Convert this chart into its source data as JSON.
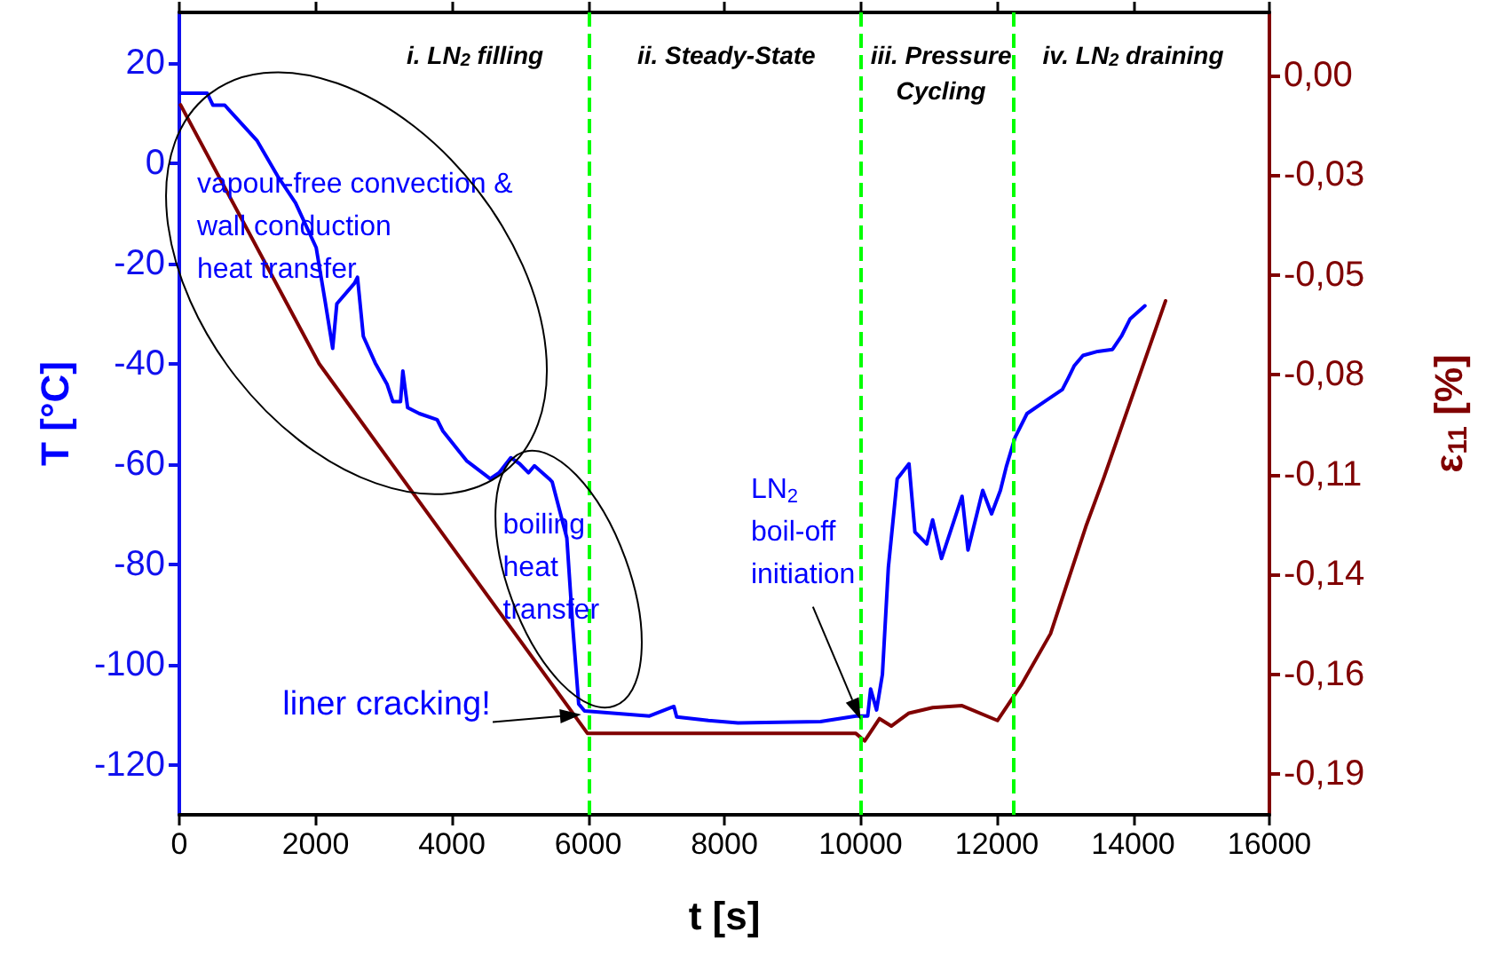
{
  "chart_data": {
    "type": "line",
    "xlabel": "t [s]",
    "ylabel": "T [°C]",
    "y2label": "ε$_{11}$ [%]",
    "xlim": [
      0,
      16000
    ],
    "xticks": [
      0,
      2000,
      4000,
      6000,
      8000,
      10000,
      12000,
      14000,
      16000
    ],
    "ylim": [
      -130,
      30
    ],
    "yticks": [
      -120,
      -100,
      -80,
      -60,
      -40,
      -20,
      0,
      20
    ],
    "y2lim": [
      -0.2,
      0.017
    ],
    "y2ticks": [
      {
        "value": 0,
        "label": "0,00"
      },
      {
        "value": -0.027,
        "label": "-0,03"
      },
      {
        "value": -0.054,
        "label": "-0,05"
      },
      {
        "value": -0.081,
        "label": "-0,08"
      },
      {
        "value": -0.108,
        "label": "-0,11"
      },
      {
        "value": -0.135,
        "label": "-0,14"
      },
      {
        "value": -0.162,
        "label": "-0,16"
      },
      {
        "value": -0.189,
        "label": "-0,19"
      }
    ],
    "series": [
      {
        "color": "#0000ff",
        "x": [
          18,
          408,
          494,
          667,
          1143,
          1446,
          1706,
          2009,
          2139,
          2251,
          2312,
          2571,
          2615,
          2701,
          2875,
          3048,
          3134,
          3247,
          3281,
          3351,
          3524,
          3784,
          3870,
          4216,
          4563,
          4693,
          4865,
          4995,
          5125,
          5212,
          5429,
          5472,
          5688,
          5775,
          5862,
          5948,
          6901,
          7260,
          7300,
          7766,
          8200,
          9411,
          9931,
          10104,
          10147,
          10234,
          10320,
          10407,
          10537,
          10710,
          10797,
          10970,
          11057,
          11187,
          11316,
          11489,
          11576,
          11792,
          11922,
          12052,
          12138,
          12268,
          12442,
          12701,
          12961,
          13048,
          13134,
          13264,
          13481,
          13697,
          13827,
          13957,
          14173
        ],
        "values": [
          13.9,
          13.9,
          11.5,
          11.5,
          4.4,
          -2.7,
          -8,
          -16.9,
          -27.5,
          -37,
          -28.1,
          -24,
          -22.8,
          -34.6,
          -39.9,
          -44.1,
          -47.6,
          -47.6,
          -41.5,
          -48.8,
          -50,
          -51.2,
          -53.5,
          -59.4,
          -63,
          -61.8,
          -58.8,
          -60,
          -61.8,
          -60.4,
          -63,
          -63.6,
          -74.8,
          -92.5,
          -107.9,
          -109.3,
          -110.3,
          -108.4,
          -110.5,
          -111.2,
          -111.7,
          -111.4,
          -110.3,
          -110.3,
          -104.9,
          -109.1,
          -102,
          -80.7,
          -63,
          -60,
          -73.6,
          -76,
          -71.2,
          -78.9,
          -73.6,
          -66.5,
          -77.2,
          -65.3,
          -70,
          -65.3,
          -60.6,
          -54.7,
          -50,
          -47.6,
          -45.2,
          -42.9,
          -40.5,
          -38.4,
          -37.6,
          -37.2,
          -34.6,
          -31.1,
          -28.5
        ]
      },
      {
        "color": "#800000",
        "axis": "y2",
        "x": [
          18,
          2052,
          5992,
          9931,
          10061,
          10277,
          10450,
          10710,
          11057,
          11489,
          12008,
          12355,
          12788,
          13307,
          13567,
          14476
        ],
        "values": [
          -0.008,
          -0.078,
          -0.178,
          -0.178,
          -0.18,
          -0.174,
          -0.176,
          -0.1725,
          -0.171,
          -0.1705,
          -0.1745,
          -0.165,
          -0.151,
          -0.122,
          -0.109,
          -0.061
        ]
      }
    ],
    "ref_lines": [
      {
        "axis": "x",
        "value": 6000,
        "color": "#00ff00",
        "line_style": "dashed"
      },
      {
        "axis": "x",
        "value": 10000,
        "color": "#00ff00",
        "line_style": "dashed"
      },
      {
        "axis": "x",
        "value": 12250,
        "color": "#00ff00",
        "line_style": "dashed"
      }
    ],
    "annotations": [
      "i. LN$_{2}$ filling",
      "ii. Steady-State",
      "iii. Pressure\nCycling",
      "iv. LN$_{2}$ draining",
      "vapour-free convection &\nwall conduction\nheat transfer",
      "boiling\nheat\ntransfer",
      {
        "text": "liner cracking!",
        "x": 5900,
        "y": -110
      },
      "LN$_{2}$\nboil-off\ninitiation"
    ]
  }
}
